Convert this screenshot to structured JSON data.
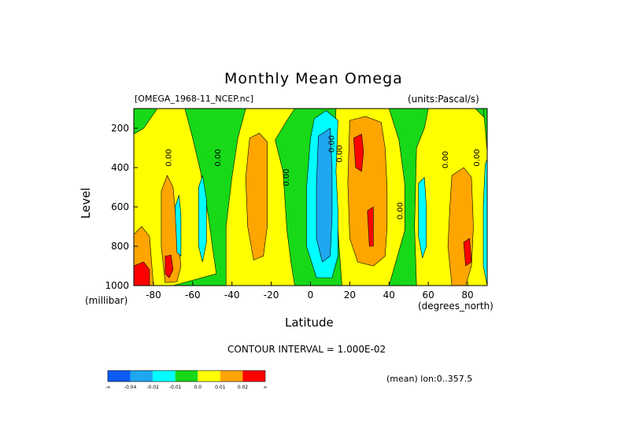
{
  "header": {
    "title": "Monthly Mean Omega",
    "dataset": "[OMEGA_1968-11_NCEP.nc]",
    "units": "(units:Pascal/s)"
  },
  "footer": {
    "contour_interval": "CONTOUR INTERVAL = 1.000E-02",
    "mean_note": "(mean) lon:0..357.5"
  },
  "chart_data": {
    "type": "heatmap",
    "title": "Monthly Mean Omega",
    "xlabel": "Latitude",
    "x_units": "(degrees_north)",
    "ylabel": "Level",
    "y_units": "(millibar)",
    "xlim": [
      -90,
      90
    ],
    "ylim": [
      1000,
      100
    ],
    "y_reversed": true,
    "x_ticks": [
      -80,
      -60,
      -40,
      -20,
      0,
      20,
      40,
      60,
      80
    ],
    "x_tick_labels": [
      "-80",
      "-60",
      "-40",
      "-20",
      "0",
      "20",
      "40",
      "60",
      "80"
    ],
    "y_ticks": [
      200,
      400,
      600,
      800,
      1000
    ],
    "y_tick_labels": [
      "200",
      "400",
      "600",
      "800",
      "1000"
    ],
    "contour_labels": [
      {
        "text": "0.00",
        "lat": -71,
        "level": 350
      },
      {
        "text": "0.00",
        "lat": -46,
        "level": 350
      },
      {
        "text": "0.00",
        "lat": -11,
        "level": 450
      },
      {
        "text": "0.00",
        "lat": 12,
        "level": 280
      },
      {
        "text": "0.00",
        "lat": 16,
        "level": 330
      },
      {
        "text": "0.00",
        "lat": 47,
        "level": 620
      },
      {
        "text": "0.00",
        "lat": 70,
        "level": 360
      },
      {
        "text": "0.00",
        "lat": 86,
        "level": 350
      }
    ],
    "legend": {
      "labels": [
        "-∞",
        "-0.04",
        "-0.02",
        "-0.01",
        "0.0",
        "0.01",
        "0.02",
        "∞"
      ],
      "colors": [
        "#0a5cf5",
        "#1ea7f0",
        "#00ffff",
        "#17d917",
        "#ffff00",
        "#ffa500",
        "#ff0000"
      ]
    },
    "regions": [
      {
        "color": "#17d917",
        "pts": [
          [
            -90,
            100
          ],
          [
            90,
            100
          ],
          [
            90,
            1000
          ],
          [
            -90,
            1000
          ]
        ]
      },
      {
        "color": "#ffff00",
        "pts": [
          [
            -90,
            230
          ],
          [
            -85,
            200
          ],
          [
            -78,
            100
          ],
          [
            -64,
            100
          ],
          [
            -60,
            250
          ],
          [
            -56,
            420
          ],
          [
            -52,
            650
          ],
          [
            -50,
            800
          ],
          [
            -48,
            940
          ],
          [
            -70,
            1000
          ],
          [
            -90,
            1000
          ]
        ]
      },
      {
        "color": "#ffff00",
        "pts": [
          [
            -43,
            700
          ],
          [
            -40,
            450
          ],
          [
            -37,
            250
          ],
          [
            -33,
            100
          ],
          [
            -8,
            100
          ],
          [
            -12,
            160
          ],
          [
            -18,
            260
          ],
          [
            -14,
            420
          ],
          [
            -12,
            720
          ],
          [
            -10,
            880
          ],
          [
            -8,
            1000
          ],
          [
            -43,
            1000
          ]
        ]
      },
      {
        "color": "#ffff00",
        "pts": [
          [
            13,
            100
          ],
          [
            40,
            100
          ],
          [
            45,
            260
          ],
          [
            48,
            480
          ],
          [
            48,
            720
          ],
          [
            44,
            860
          ],
          [
            40,
            1000
          ],
          [
            16,
            1000
          ],
          [
            14,
            720
          ],
          [
            12,
            400
          ]
        ]
      },
      {
        "color": "#ffff00",
        "pts": [
          [
            54,
            300
          ],
          [
            58,
            200
          ],
          [
            60,
            100
          ],
          [
            84,
            100
          ],
          [
            90,
            160
          ],
          [
            90,
            1000
          ],
          [
            54,
            1000
          ],
          [
            53,
            700
          ]
        ]
      },
      {
        "color": "#17d917",
        "pts": [
          [
            88,
            100
          ],
          [
            90,
            100
          ],
          [
            90,
            320
          ],
          [
            89,
            200
          ]
        ]
      },
      {
        "color": "#ffa500",
        "pts": [
          [
            -90,
            740
          ],
          [
            -86,
            700
          ],
          [
            -82,
            750
          ],
          [
            -80,
            1000
          ],
          [
            -90,
            1000
          ]
        ]
      },
      {
        "color": "#ffa500",
        "pts": [
          [
            -76,
            520
          ],
          [
            -73,
            440
          ],
          [
            -70,
            500
          ],
          [
            -68,
            720
          ],
          [
            -66,
            900
          ],
          [
            -68,
            980
          ],
          [
            -74,
            985
          ],
          [
            -76,
            800
          ]
        ]
      },
      {
        "color": "#ffa500",
        "pts": [
          [
            -31,
            250
          ],
          [
            -26,
            225
          ],
          [
            -22,
            270
          ],
          [
            -22,
            500
          ],
          [
            -22,
            700
          ],
          [
            -24,
            850
          ],
          [
            -29,
            870
          ],
          [
            -32,
            700
          ],
          [
            -33,
            450
          ]
        ]
      },
      {
        "color": "#ffa500",
        "pts": [
          [
            20,
            160
          ],
          [
            28,
            140
          ],
          [
            36,
            170
          ],
          [
            38,
            300
          ],
          [
            39,
            500
          ],
          [
            39,
            700
          ],
          [
            38,
            850
          ],
          [
            32,
            900
          ],
          [
            24,
            880
          ],
          [
            20,
            760
          ],
          [
            19,
            480
          ]
        ]
      },
      {
        "color": "#ffa500",
        "pts": [
          [
            72,
            440
          ],
          [
            78,
            400
          ],
          [
            82,
            450
          ],
          [
            83,
            700
          ],
          [
            82,
            900
          ],
          [
            79,
            1000
          ],
          [
            72,
            1000
          ],
          [
            70,
            800
          ],
          [
            71,
            600
          ]
        ]
      },
      {
        "color": "#ff0000",
        "pts": [
          [
            -90,
            900
          ],
          [
            -85,
            880
          ],
          [
            -82,
            920
          ],
          [
            -82,
            1000
          ],
          [
            -90,
            1000
          ]
        ]
      },
      {
        "color": "#ff0000",
        "pts": [
          [
            -74,
            850
          ],
          [
            -71,
            845
          ],
          [
            -70,
            920
          ],
          [
            -72,
            960
          ],
          [
            -74,
            940
          ]
        ]
      },
      {
        "color": "#ff0000",
        "pts": [
          [
            22,
            250
          ],
          [
            26,
            230
          ],
          [
            27,
            320
          ],
          [
            26,
            420
          ],
          [
            23,
            400
          ]
        ]
      },
      {
        "color": "#ff0000",
        "pts": [
          [
            29,
            620
          ],
          [
            32,
            600
          ],
          [
            32,
            800
          ],
          [
            30,
            800
          ]
        ]
      },
      {
        "color": "#ff0000",
        "pts": [
          [
            78,
            780
          ],
          [
            81,
            760
          ],
          [
            82,
            880
          ],
          [
            79,
            900
          ]
        ]
      },
      {
        "color": "#00ffff",
        "pts": [
          [
            2,
            150
          ],
          [
            8,
            110
          ],
          [
            14,
            160
          ],
          [
            13,
            420
          ],
          [
            14,
            620
          ],
          [
            14,
            850
          ],
          [
            11,
            960
          ],
          [
            3,
            960
          ],
          [
            -2,
            800
          ],
          [
            -2,
            500
          ],
          [
            0,
            250
          ]
        ]
      },
      {
        "color": "#1ea7f0",
        "pts": [
          [
            4,
            240
          ],
          [
            10,
            200
          ],
          [
            11,
            400
          ],
          [
            11,
            650
          ],
          [
            10,
            850
          ],
          [
            6,
            880
          ],
          [
            3,
            760
          ],
          [
            3,
            500
          ]
        ]
      },
      {
        "color": "#00ffff",
        "pts": [
          [
            -69,
            600
          ],
          [
            -67,
            540
          ],
          [
            -66,
            640
          ],
          [
            -66,
            850
          ],
          [
            -68,
            830
          ]
        ]
      },
      {
        "color": "#00ffff",
        "pts": [
          [
            -57,
            500
          ],
          [
            -55,
            440
          ],
          [
            -53,
            560
          ],
          [
            -53,
            780
          ],
          [
            -55,
            880
          ],
          [
            -57,
            800
          ]
        ]
      },
      {
        "color": "#00ffff",
        "pts": [
          [
            55,
            480
          ],
          [
            58,
            450
          ],
          [
            59,
            600
          ],
          [
            59,
            800
          ],
          [
            57,
            860
          ],
          [
            55,
            750
          ]
        ]
      },
      {
        "color": "#00ffff",
        "pts": [
          [
            89,
            380
          ],
          [
            90,
            360
          ],
          [
            90,
            1000
          ],
          [
            88,
            900
          ],
          [
            88,
            600
          ]
        ]
      }
    ]
  }
}
